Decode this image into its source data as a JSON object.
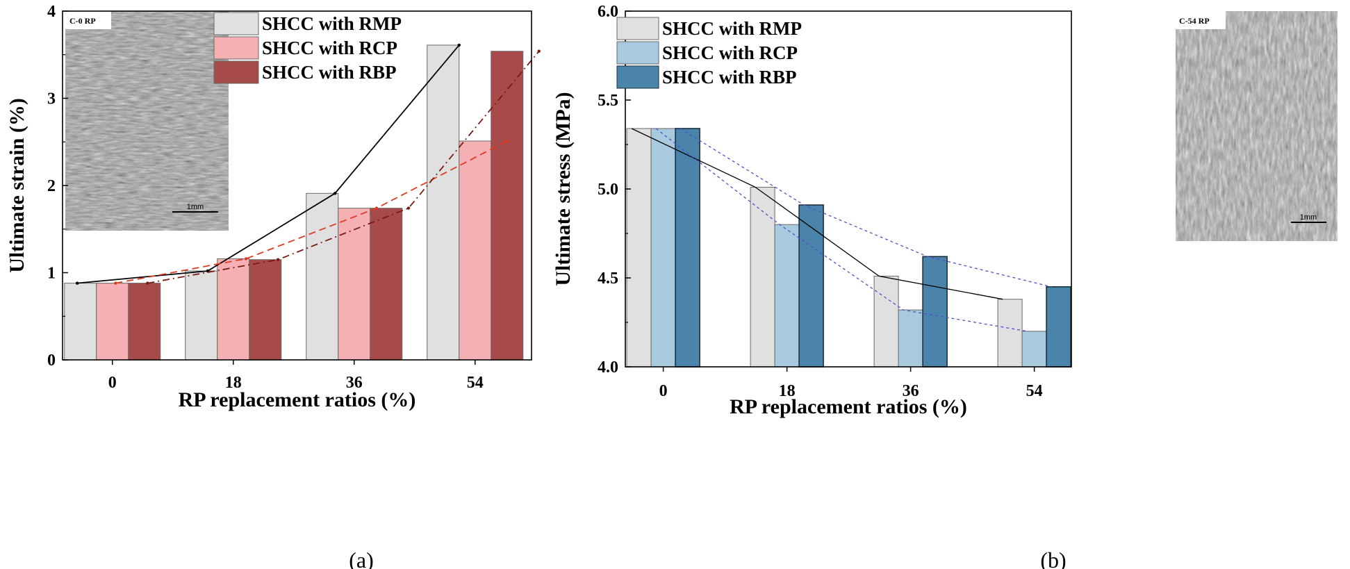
{
  "chart_data": [
    {
      "id": "a",
      "type": "bar",
      "panel_label": "(a)",
      "title": "",
      "xlabel": "RP replacement ratios (%)",
      "ylabel": "Ultimate strain (%)",
      "ylim": [
        0,
        4
      ],
      "yticks": [
        "0",
        "1",
        "2",
        "3",
        "4"
      ],
      "categories": [
        "0",
        "18",
        "36",
        "54"
      ],
      "legend_position": "top-center",
      "series": [
        {
          "name": "SHCC with RMP",
          "values": [
            0.88,
            1.02,
            1.91,
            3.61
          ],
          "color": "#e0e0e0",
          "trend_style": "solid",
          "trend_color": "#000000"
        },
        {
          "name": "SHCC with RCP",
          "values": [
            0.88,
            1.16,
            1.74,
            2.51
          ],
          "color": "#f5b0b3",
          "trend_style": "dash",
          "trend_color": "#dd3b22"
        },
        {
          "name": "SHCC with RBP",
          "values": [
            0.88,
            1.15,
            1.74,
            3.54
          ],
          "color": "#a64a4a",
          "trend_style": "dashdot",
          "trend_color": "#7a1a10"
        }
      ],
      "inset": {
        "label": "C-0 RP",
        "scale": "1mm"
      }
    },
    {
      "id": "b",
      "type": "bar",
      "panel_label": "(b)",
      "title": "",
      "xlabel": "RP replacement ratios (%)",
      "ylabel": "Ultimate stress (MPa)",
      "ylim": [
        4.0,
        6.0
      ],
      "yticks": [
        "4.0",
        "4.5",
        "5.0",
        "5.5",
        "6.0"
      ],
      "categories": [
        "0",
        "18",
        "36",
        "54"
      ],
      "legend_position": "top-left",
      "series": [
        {
          "name": "SHCC with RMP",
          "values": [
            5.34,
            5.01,
            4.51,
            4.38
          ],
          "color": "#e0e0e0",
          "trend_style": "solid",
          "trend_color": "#000000"
        },
        {
          "name": "SHCC with RCP",
          "values": [
            5.34,
            4.8,
            4.32,
            4.2
          ],
          "color": "#a8cade",
          "trend_style": "dot",
          "trend_color": "#5050c8"
        },
        {
          "name": "SHCC with RBP",
          "values": [
            5.34,
            4.91,
            4.62,
            4.45
          ],
          "color": "#4a84aa",
          "trend_style": "dot",
          "trend_color": "#5050c8"
        }
      ],
      "inset": {
        "label": "C-54 RP",
        "scale": "1mm"
      }
    }
  ]
}
